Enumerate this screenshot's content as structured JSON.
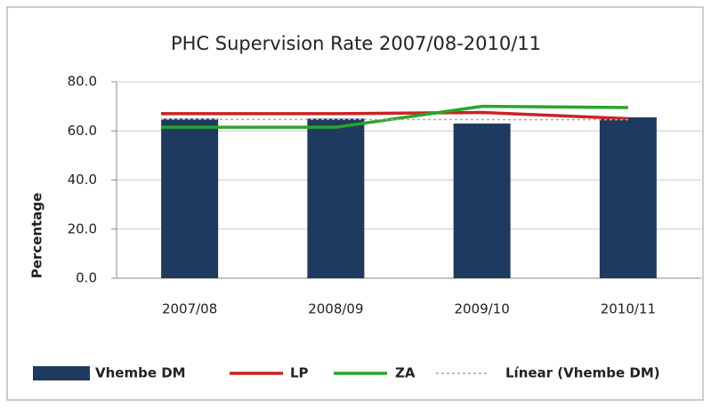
{
  "chart_data": {
    "type": "bar",
    "title": "PHC Supervision Rate 2007/08-2010/11",
    "y_label": "Percentage",
    "categories": [
      "2007/08",
      "2008/09",
      "2009/10",
      "2010/11"
    ],
    "series": [
      {
        "name": "Vhembe DM",
        "type": "bar",
        "color": "#1f3a5f",
        "values": [
          65,
          65,
          63,
          65.5
        ]
      },
      {
        "name": "LP",
        "type": "line",
        "color": "#cc2222",
        "values": [
          67,
          67,
          67.5,
          65
        ]
      },
      {
        "name": "ZA",
        "type": "line",
        "color": "#2aa52a",
        "values": [
          61.5,
          61.5,
          70,
          69.5
        ]
      },
      {
        "name": "Línear (Vhembe DM)",
        "type": "line",
        "dashed": true,
        "color": "#aaaaaa",
        "values": [
          64.7,
          64.65,
          64.6,
          64.55
        ]
      }
    ],
    "ylim": [
      0,
      80
    ],
    "yticks": [
      {
        "value": 0,
        "label": "0.0"
      },
      {
        "value": 20,
        "label": "20.0"
      },
      {
        "value": 40,
        "label": "40.0"
      },
      {
        "value": 60,
        "label": "60.0"
      },
      {
        "value": 80,
        "label": "80.0"
      }
    ],
    "grid": true,
    "legend": "bottom"
  }
}
